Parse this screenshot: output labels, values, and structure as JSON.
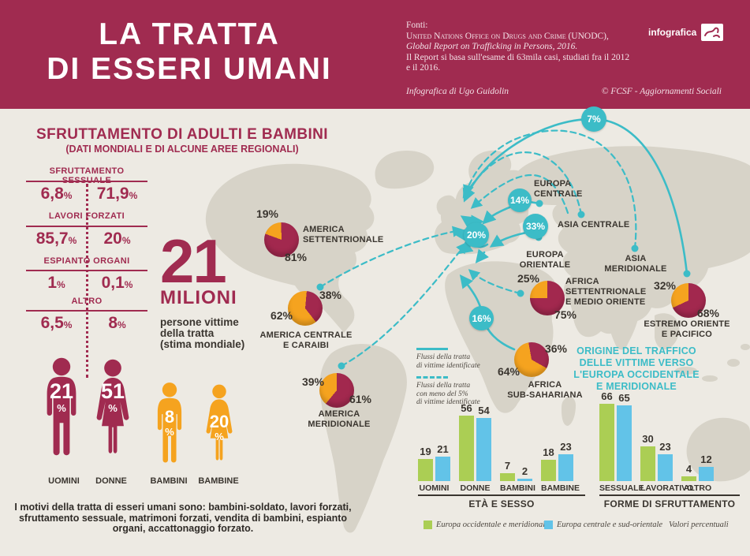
{
  "header": {
    "title_line1": "LA TRATTA",
    "title_line2": "DI ESSERI UMANI",
    "fonti_label": "Fonti:",
    "fonti_line1": "United Nations Office on Drugs and Crime (UNODC),",
    "fonti_line2": "Global Report on Trafficking in Persons, 2016.",
    "fonti_line3": "Il Report si basa sull'esame di 63mila casi, studiati fra il 2012",
    "fonti_line4": "e il 2016.",
    "credit_left": "Infografica di Ugo Guidolin",
    "credit_right": "© FCSF - Aggiornamenti Sociali",
    "logo_text": "infografica"
  },
  "intro": {
    "title": "SFRUTTAMENTO DI ADULTI  E BAMBINI",
    "subtitle": "(DATI MONDIALI E DI ALCUNE AREE REGIONALI)"
  },
  "stats": [
    {
      "label": "SFRUTTAMENTO SESSUALE",
      "left_value": "6,8",
      "right_value": "71,9",
      "unit": "%"
    },
    {
      "label": "LAVORI FORZATI",
      "left_value": "85,7",
      "right_value": "20",
      "unit": "%"
    },
    {
      "label": "ESPIANTO ORGANI",
      "left_value": "1",
      "right_value": "0,1",
      "unit": "%"
    },
    {
      "label": "ALTRO",
      "left_value": "6,5",
      "right_value": "8",
      "unit": "%"
    }
  ],
  "big_number": {
    "value": "21",
    "unit": "MILIONI",
    "line1": "persone vittime",
    "line2": "della tratta",
    "line3": "(stima mondiale)"
  },
  "figures": [
    {
      "label": "UOMINI",
      "value": "21",
      "unit": "%"
    },
    {
      "label": "DONNE",
      "value": "51",
      "unit": "%"
    },
    {
      "label": "BAMBINI",
      "value": "8",
      "unit": "%"
    },
    {
      "label": "BAMBINE",
      "value": "20",
      "unit": "%"
    }
  ],
  "footnote": {
    "line1": "I motivi della tratta di esseri umani sono: bambini-soldato, lavori forzati,",
    "line2": "sfruttamento sessuale, matrimoni forzati, vendita di bambini, espianto",
    "line3": "organi, accattonaggio forzato."
  },
  "map": {
    "regions": {
      "europa_centrale": {
        "line1": "EUROPA",
        "line2": "CENTRALE"
      },
      "asia_centrale": "ASIA CENTRALE",
      "europa_orientale": {
        "line1": "EUROPA",
        "line2": "ORIENTALE"
      },
      "asia_meridionale": {
        "line1": "ASIA",
        "line2": "MERIDIONALE"
      }
    },
    "flows": [
      {
        "label": "7%"
      },
      {
        "label": "14%"
      },
      {
        "label": "33%"
      },
      {
        "label": "20%"
      },
      {
        "label": "16%"
      }
    ],
    "flow_legend": {
      "solid_line1": "Flussi della tratta",
      "solid_line2": "di vittime identificate",
      "dashed_line1": "Flussi della tratta",
      "dashed_line2": "con meno del 5%",
      "dashed_line3": "di vittime identificate"
    },
    "origin_title": {
      "line1": "ORIGINE DEL TRAFFICO",
      "line2": "DELLE VITTIME VERSO",
      "line3": "L'EUROPA OCCIDENTALE",
      "line4": "E MERIDIONALE"
    }
  },
  "bar_legend": {
    "green_label": "Europa occidentale e meridionale",
    "blue_label": "Europa centrale e sud-orientale",
    "note": "Valori percentuali"
  },
  "colors": {
    "maroon": "#a02b50",
    "red": "#a2284e",
    "orange": "#f5a31f",
    "teal": "#3cbcc7",
    "green": "#abce54",
    "blue": "#62c3e8",
    "land": "#d7d3c8",
    "background": "#edeae3"
  },
  "chart_data": [
    {
      "type": "pie",
      "region": "AMERICA SETTENTRIONALE",
      "name_lines": [
        "AMERICA",
        "SETTENTRIONALE"
      ],
      "slices": {
        "orange": 19,
        "red": 81
      },
      "labels": {
        "orange": "19%",
        "red": "81%"
      }
    },
    {
      "type": "pie",
      "region": "AMERICA CENTRALE E CARAIBI",
      "name_lines": [
        "AMERICA CENTRALE",
        "E CARAIBI"
      ],
      "slices": {
        "orange": 62,
        "red": 38
      },
      "labels": {
        "orange": "62%",
        "red": "38%"
      }
    },
    {
      "type": "pie",
      "region": "AMERICA MERIDIONALE",
      "name_lines": [
        "AMERICA",
        "MERIDIONALE"
      ],
      "slices": {
        "orange": 39,
        "red": 61
      },
      "labels": {
        "orange": "39%",
        "red": "61%"
      }
    },
    {
      "type": "pie",
      "region": "AFRICA SETTENTRIONALE E MEDIO ORIENTE",
      "name_lines": [
        "AFRICA",
        "SETTENTRIONALE",
        "E MEDIO ORIENTE"
      ],
      "slices": {
        "orange": 25,
        "red": 75
      },
      "labels": {
        "orange": "25%",
        "red": "75%"
      }
    },
    {
      "type": "pie",
      "region": "AFRICA SUB-SAHARIANA",
      "name_lines": [
        "AFRICA",
        "SUB-SAHARIANA"
      ],
      "slices": {
        "orange": 64,
        "red": 36
      },
      "labels": {
        "orange": "64%",
        "red": "36%"
      }
    },
    {
      "type": "pie",
      "region": "ESTREMO ORIENTE E PACIFICO",
      "name_lines": [
        "ESTREMO ORIENTE",
        "E PACIFICO"
      ],
      "slices": {
        "orange": 32,
        "red": 68
      },
      "labels": {
        "orange": "32%",
        "red": "68%"
      }
    },
    {
      "type": "bar",
      "title": "ETÀ E SESSO",
      "categories": [
        "UOMINI",
        "DONNE",
        "BAMBINI",
        "BAMBINE"
      ],
      "series": [
        {
          "name": "Europa occidentale e meridionale",
          "color": "#abce54",
          "values": [
            19,
            56,
            7,
            18
          ]
        },
        {
          "name": "Europa centrale e sud-orientale",
          "color": "#62c3e8",
          "values": [
            21,
            54,
            2,
            23
          ]
        }
      ],
      "ylim": [
        0,
        70
      ],
      "unit": "Valori percentuali"
    },
    {
      "type": "bar",
      "title": "FORME DI SFRUTTAMENTO",
      "categories": [
        "SESSUALE",
        "LAVORATIVO",
        "ALTRO"
      ],
      "series": [
        {
          "name": "Europa occidentale e meridionale",
          "color": "#abce54",
          "values": [
            66,
            30,
            4
          ]
        },
        {
          "name": "Europa centrale e sud-orientale",
          "color": "#62c3e8",
          "values": [
            65,
            23,
            12
          ]
        }
      ],
      "ylim": [
        0,
        70
      ],
      "unit": "Valori percentuali"
    },
    {
      "type": "flow",
      "title": "ORIGINE DEL TRAFFICO DELLE VITTIME VERSO L'EUROPA OCCIDENTALE E MERIDIONALE",
      "values_percent": [
        7,
        14,
        33,
        20,
        16
      ]
    }
  ]
}
